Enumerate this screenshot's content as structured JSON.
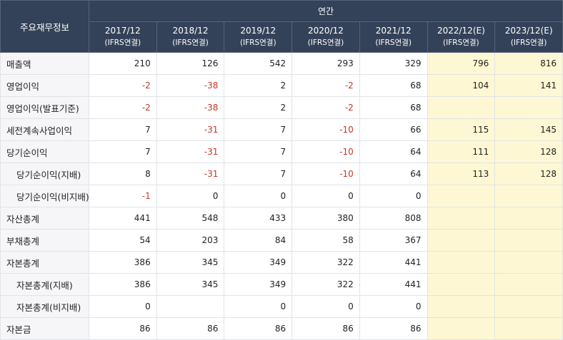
{
  "table": {
    "corner": "주요재무정보",
    "group": "연간",
    "columns": [
      {
        "period": "2017/12",
        "basis": "(IFRS연결)"
      },
      {
        "period": "2018/12",
        "basis": "(IFRS연결)"
      },
      {
        "period": "2019/12",
        "basis": "(IFRS연결)"
      },
      {
        "period": "2020/12",
        "basis": "(IFRS연결)"
      },
      {
        "period": "2021/12",
        "basis": "(IFRS연결)"
      },
      {
        "period": "2022/12(E)",
        "basis": "(IFRS연결)"
      },
      {
        "period": "2023/12(E)",
        "basis": "(IFRS연결)"
      }
    ],
    "rows": [
      {
        "label": "매출액",
        "values": [
          210,
          126,
          542,
          293,
          329,
          796,
          816
        ]
      },
      {
        "label": "영업이익",
        "values": [
          -2,
          -38,
          2,
          -2,
          68,
          104,
          141
        ]
      },
      {
        "label": "영업이익(발표기준)",
        "values": [
          -2,
          -38,
          2,
          -2,
          68,
          null,
          null
        ]
      },
      {
        "label": "세전계속사업이익",
        "values": [
          7,
          -31,
          7,
          -10,
          66,
          115,
          145
        ]
      },
      {
        "label": "당기순이익",
        "values": [
          7,
          -31,
          7,
          -10,
          64,
          111,
          128
        ]
      },
      {
        "label": "당기순이익(지배)",
        "values": [
          8,
          -31,
          7,
          -10,
          64,
          113,
          128
        ]
      },
      {
        "label": "당기순이익(비지배)",
        "values": [
          -1,
          0,
          0,
          0,
          0,
          null,
          null
        ]
      },
      {
        "label": "자산총계",
        "values": [
          441,
          548,
          433,
          380,
          808,
          null,
          null
        ]
      },
      {
        "label": "부채총계",
        "values": [
          54,
          203,
          84,
          58,
          367,
          null,
          null
        ]
      },
      {
        "label": "자본총계",
        "values": [
          386,
          345,
          349,
          322,
          441,
          null,
          null
        ]
      },
      {
        "label": "자본총계(지배)",
        "values": [
          386,
          345,
          349,
          322,
          441,
          null,
          null
        ]
      },
      {
        "label": "자본총계(비지배)",
        "values": [
          0,
          null,
          0,
          0,
          0,
          null,
          null
        ]
      },
      {
        "label": "자본금",
        "values": [
          86,
          86,
          86,
          86,
          86,
          null,
          null
        ]
      }
    ]
  }
}
